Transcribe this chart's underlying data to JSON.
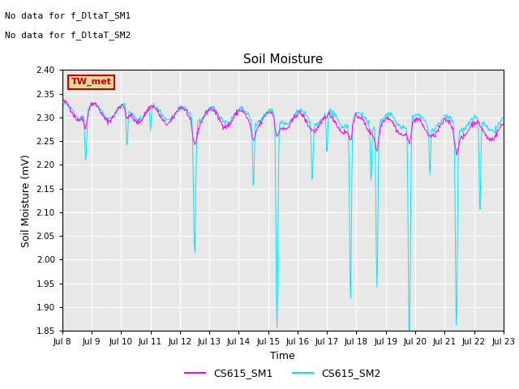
{
  "title": "Soil Moisture",
  "xlabel": "Time",
  "ylabel": "Soil Moisture (mV)",
  "ylim": [
    1.85,
    2.4
  ],
  "xlim": [
    0,
    15
  ],
  "xtick_labels": [
    "Jul 8",
    "Jul 9",
    "Jul 10",
    "Jul 11",
    "Jul 12",
    "Jul 13",
    "Jul 14",
    "Jul 15",
    "Jul 16",
    "Jul 17",
    "Jul 18",
    "Jul 19",
    "Jul 20",
    "Jul 21",
    "Jul 22",
    "Jul 23"
  ],
  "color_sm1": "#ff00ff",
  "color_sm2": "#00e5ff",
  "annotation1": "No data for f_DltaT_SM1",
  "annotation2": "No data for f_DltaT_SM2",
  "tw_met_label": "TW_met",
  "tw_met_color": "#cc0000",
  "tw_met_bg": "#e8d8a0",
  "legend_sm1": "CS615_SM1",
  "legend_sm2": "CS615_SM2",
  "bg_color": "#e8e8e8",
  "fig_color": "#ffffff"
}
